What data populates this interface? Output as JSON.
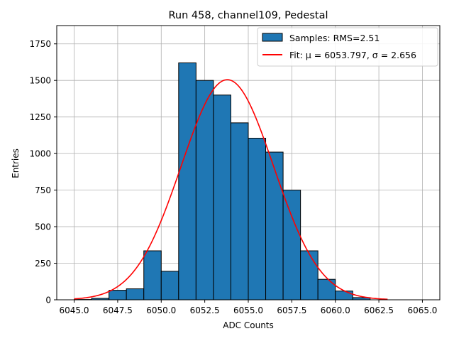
{
  "chart_data": {
    "type": "bar",
    "title": "Run 458, channel109, Pedestal",
    "xlabel": "ADC Counts",
    "ylabel": "Entries",
    "xlim": [
      6044.0,
      6066.0
    ],
    "ylim": [
      0,
      1875
    ],
    "x_ticks": [
      6045.0,
      6047.5,
      6050.0,
      6052.5,
      6055.0,
      6057.5,
      6060.0,
      6062.5,
      6065.0
    ],
    "x_tick_labels": [
      "6045.0",
      "6047.5",
      "6050.0",
      "6052.5",
      "6055.0",
      "6057.5",
      "6060.0",
      "6062.5",
      "6065.0"
    ],
    "y_ticks": [
      0,
      250,
      500,
      750,
      1000,
      1250,
      1500,
      1750
    ],
    "y_tick_labels": [
      "0",
      "250",
      "500",
      "750",
      "1000",
      "1250",
      "1500",
      "1750"
    ],
    "grid": true,
    "legend_position": "top-right",
    "bin_edges": [
      6045,
      6046,
      6047,
      6048,
      6049,
      6050,
      6051,
      6052,
      6053,
      6054,
      6055,
      6056,
      6057,
      6058,
      6059,
      6060,
      6061,
      6062,
      6063,
      6064,
      6065
    ],
    "series": [
      {
        "name": "Samples: RMS=2.51",
        "kind": "histogram",
        "color": "#1f77b4",
        "edgecolor": "#000000",
        "values": [
          2,
          10,
          65,
          75,
          335,
          195,
          1620,
          1500,
          1400,
          1210,
          1105,
          1010,
          750,
          335,
          140,
          60,
          15,
          0,
          0,
          0
        ]
      },
      {
        "name": "Fit: μ = 6053.797, σ = 2.656",
        "kind": "gaussian",
        "color": "#ff0000",
        "mu": 6053.797,
        "sigma": 2.656,
        "amplitude": 1505,
        "x_range": [
          6045,
          6063
        ]
      }
    ]
  }
}
